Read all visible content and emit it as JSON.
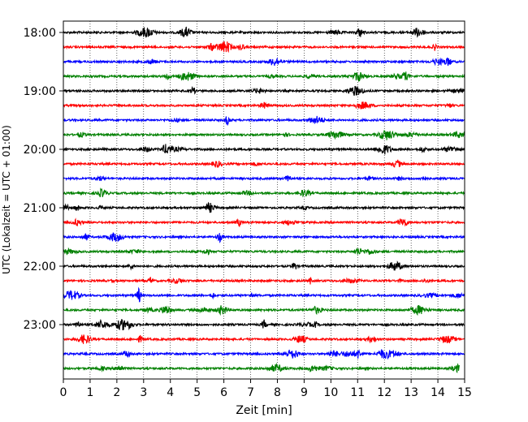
{
  "chart_data": {
    "type": "line",
    "title": "",
    "xlabel": "Zeit  [min]",
    "ylabel": "UTC (Lokalzeit = UTC + 01:00)",
    "xlim": [
      0,
      15
    ],
    "x_ticks": [
      "0",
      "1",
      "2",
      "3",
      "4",
      "5",
      "6",
      "7",
      "8",
      "9",
      "10",
      "11",
      "12",
      "13",
      "14",
      "15"
    ],
    "y_tick_labels": [
      "18:00",
      "19:00",
      "20:00",
      "21:00",
      "22:00",
      "23:00"
    ],
    "grid": "vertical dotted",
    "row_interval_min": 15,
    "trace_colors": [
      "#000000",
      "#ff0000",
      "#0000ff",
      "#008000"
    ],
    "rows": [
      {
        "start": "18:00"
      },
      {
        "start": "18:15"
      },
      {
        "start": "18:30"
      },
      {
        "start": "18:45"
      },
      {
        "start": "19:00"
      },
      {
        "start": "19:15"
      },
      {
        "start": "19:30"
      },
      {
        "start": "19:45"
      },
      {
        "start": "20:00"
      },
      {
        "start": "20:15"
      },
      {
        "start": "20:30"
      },
      {
        "start": "20:45"
      },
      {
        "start": "21:00"
      },
      {
        "start": "21:15"
      },
      {
        "start": "21:30"
      },
      {
        "start": "21:45"
      },
      {
        "start": "22:00"
      },
      {
        "start": "22:15"
      },
      {
        "start": "22:30"
      },
      {
        "start": "22:45"
      },
      {
        "start": "23:00"
      },
      {
        "start": "23:15"
      },
      {
        "start": "23:30"
      },
      {
        "start": "23:45"
      }
    ]
  }
}
